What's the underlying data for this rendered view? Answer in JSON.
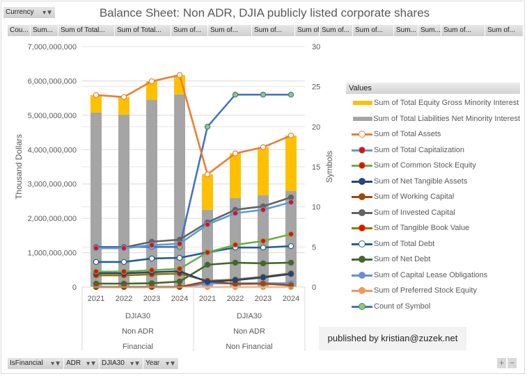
{
  "filters": {
    "currency_label": "Currency",
    "bottom": [
      "IsFinancial",
      "ADR",
      "DJIA30",
      "Year"
    ]
  },
  "value_columns": [
    "Cou...",
    "Sum...",
    "Sum of Total...",
    "Sum of Total...",
    "Sum of...",
    "Sum of...",
    "Sum of...",
    "Sum of...",
    "Sum of...",
    "Sum of...",
    "Sum...",
    "Sum...",
    "Sum of...",
    "Sum of..."
  ],
  "credit": "published by kristian@zuzek.net",
  "zoom_controls": {
    "plus": "+",
    "minus": "−"
  },
  "chart_data": {
    "type": "bar",
    "title": "Balance Sheet: Non ADR, DJIA publicly listed corporate shares",
    "ylabel": "Thousand Dollars",
    "y2label": "Symbols",
    "ylim": [
      0,
      7000000000
    ],
    "y2lim": [
      0,
      30
    ],
    "yticks": [
      "0",
      "1,000,000,000",
      "2,000,000,000",
      "3,000,000,000",
      "4,000,000,000",
      "5,000,000,000",
      "6,000,000,000",
      "7,000,000,000"
    ],
    "y2ticks": [
      "0",
      "5",
      "10",
      "15",
      "20",
      "25",
      "30"
    ],
    "grid": true,
    "legend_title": "Values",
    "legend_position": "right",
    "categories": [
      "2021",
      "2022",
      "2023",
      "2024",
      "2021",
      "2022",
      "2023",
      "2024"
    ],
    "groups": [
      {
        "labels": [
          "DJIA30",
          "Non ADR",
          "Financial"
        ],
        "span": 4
      },
      {
        "labels": [
          "DJIA30",
          "Non ADR",
          "Non Financial"
        ],
        "span": 4
      }
    ],
    "series": [
      {
        "name": "Sum of Total Equity Gross Minority Interest",
        "kind": "stacked-bar",
        "color": "#ffc000",
        "values": [
          510000000,
          510000000,
          540000000,
          560000000,
          1030000000,
          1300000000,
          1400000000,
          1610000000
        ]
      },
      {
        "name": "Sum of Total Liabilities Net Minority Interest",
        "kind": "stacked-bar-base",
        "color": "#a5a5a5",
        "values": [
          5080000000,
          5020000000,
          5450000000,
          5610000000,
          2250000000,
          2590000000,
          2670000000,
          2800000000
        ]
      },
      {
        "name": "Sum of Total Assets",
        "kind": "line",
        "color": "#ed7d31",
        "marker": "#ffffff",
        "values": [
          5590000000,
          5530000000,
          5990000000,
          6170000000,
          3280000000,
          3890000000,
          4070000000,
          4410000000
        ]
      },
      {
        "name": "Sum of Total Capitalization",
        "kind": "line",
        "color": "#5b9bd5",
        "marker": "#ff0000",
        "values": [
          1130000000,
          1130000000,
          1220000000,
          1260000000,
          1820000000,
          2150000000,
          2250000000,
          2470000000
        ]
      },
      {
        "name": "Sum of Common Stock Equity",
        "kind": "line",
        "color": "#70ad47",
        "marker": "#ff0000",
        "values": [
          450000000,
          450000000,
          490000000,
          530000000,
          1010000000,
          1230000000,
          1340000000,
          1540000000
        ]
      },
      {
        "name": "Sum of Net Tangible Assets",
        "kind": "line",
        "color": "#264478",
        "marker": "#264478",
        "values": [
          400000000,
          400000000,
          430000000,
          460000000,
          150000000,
          200000000,
          280000000,
          380000000
        ]
      },
      {
        "name": "Sum of Working Capital",
        "kind": "line",
        "color": "#9e480e",
        "marker": "#9e480e",
        "values": [
          0,
          0,
          0,
          0,
          170000000,
          90000000,
          100000000,
          50000000
        ]
      },
      {
        "name": "Sum of Invested Capital",
        "kind": "line",
        "color": "#636363",
        "marker": "#636363",
        "values": [
          1150000000,
          1150000000,
          1320000000,
          1380000000,
          1880000000,
          2250000000,
          2350000000,
          2610000000
        ]
      },
      {
        "name": "Sum of Tangible Book Value",
        "kind": "line",
        "color": "#997300",
        "marker": "#ff0000",
        "values": [
          340000000,
          340000000,
          370000000,
          390000000,
          180000000,
          220000000,
          300000000,
          400000000
        ]
      },
      {
        "name": "Sum of Total Debt",
        "kind": "line",
        "color": "#255e91",
        "marker": "#ffffff",
        "values": [
          730000000,
          730000000,
          830000000,
          850000000,
          1010000000,
          1150000000,
          1150000000,
          1190000000
        ]
      },
      {
        "name": "Sum of Net Debt",
        "kind": "line",
        "color": "#43682b",
        "marker": "#43682b",
        "values": [
          100000000,
          100000000,
          110000000,
          160000000,
          650000000,
          710000000,
          690000000,
          710000000
        ]
      },
      {
        "name": "Sum of Capital Lease Obligations",
        "kind": "line",
        "color": "#698ed0",
        "marker": "#698ed0",
        "values": [
          0,
          0,
          0,
          0,
          100000000,
          110000000,
          110000000,
          110000000
        ]
      },
      {
        "name": "Sum of Preferred Stock Equity",
        "kind": "line",
        "color": "#f1975a",
        "marker": "#f1975a",
        "values": [
          10000000,
          10000000,
          10000000,
          10000000,
          0,
          0,
          0,
          0
        ]
      },
      {
        "name": "Count of Symbol",
        "kind": "line-secondary",
        "color": "#4472c4",
        "marker": "#92d050",
        "values": [
          5,
          5,
          5,
          5,
          20,
          24,
          24,
          24
        ]
      }
    ]
  }
}
